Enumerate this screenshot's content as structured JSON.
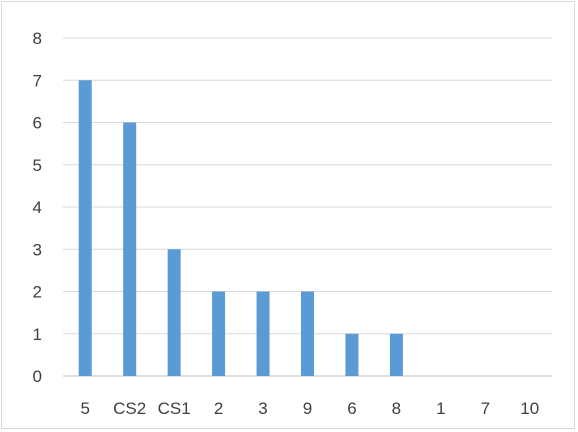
{
  "chart_data": {
    "type": "bar",
    "categories": [
      "5",
      "CS2",
      "CS1",
      "2",
      "3",
      "9",
      "6",
      "8",
      "1",
      "7",
      "10"
    ],
    "values": [
      7,
      6,
      3,
      2,
      2,
      2,
      1,
      1,
      0,
      0,
      0
    ],
    "ylim": [
      0,
      8
    ],
    "yticks": [
      "0",
      "1",
      "2",
      "3",
      "4",
      "5",
      "6",
      "7",
      "8"
    ],
    "grid": true,
    "legend": "none",
    "colors": {
      "bar": "#5b9bd5",
      "grid": "#d9d9d9",
      "axis": "#bfbfbf",
      "text": "#404040"
    }
  }
}
